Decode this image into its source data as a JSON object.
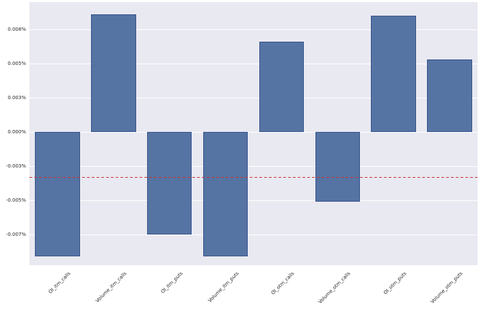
{
  "chart_data": {
    "type": "bar",
    "title": "",
    "xlabel": "",
    "ylabel": "",
    "value_unit": "percent",
    "categories": [
      "OI_itm_calls",
      "Volume_itm_calls",
      "OI_itm_puts",
      "Volume_itm_puts",
      "OI_otm_calls",
      "Volume_otm_calls",
      "OI_otm_puts",
      "Volume_otm_puts"
    ],
    "values": [
      -0.0091,
      0.0086,
      -0.0075,
      -0.0091,
      0.0066,
      -0.0051,
      0.0085,
      0.0053
    ],
    "yticks": [
      {
        "value": 0.0075,
        "label": "0.008%"
      },
      {
        "value": 0.005,
        "label": "0.005%"
      },
      {
        "value": 0.0025,
        "label": "0.003%"
      },
      {
        "value": 0.0,
        "label": "0.000%"
      },
      {
        "value": -0.0025,
        "label": "-0.003%"
      },
      {
        "value": -0.005,
        "label": "-0.005%"
      },
      {
        "value": -0.0075,
        "label": "-0.007%"
      }
    ],
    "ylim": [
      -0.00975,
      0.0095
    ],
    "reference_line": {
      "value": -0.0033,
      "color": "#cc3333",
      "style": "dashed"
    },
    "grid": "on",
    "legend": "none",
    "colors": {
      "bar_fill": "#5674a3",
      "bar_edge": "#33518c",
      "plot_background": "#e9e9f1",
      "figure_background": "#ffffff",
      "gridline": "#ffffff",
      "tick_text": "#262626"
    },
    "x_tick_rotation_deg": 45
  }
}
